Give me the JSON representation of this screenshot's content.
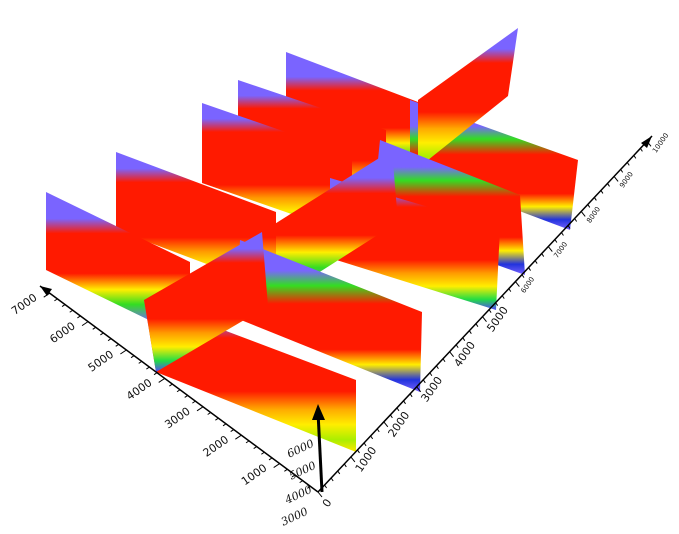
{
  "chart_data": {
    "type": "3d-fence-diagram",
    "title": "",
    "axes": {
      "x": {
        "label": "",
        "range": [
          0,
          10000
        ],
        "ticks": [
          "0",
          "1000",
          "2000",
          "3000",
          "4000",
          "5000",
          "6000",
          "7000",
          "8000",
          "9000",
          "10000"
        ]
      },
      "y": {
        "label": "",
        "range": [
          0,
          7000
        ],
        "ticks": [
          "0",
          "1000",
          "2000",
          "3000",
          "4000",
          "5000",
          "6000",
          "7000"
        ]
      },
      "z": {
        "label": "",
        "range": [
          3000,
          6000
        ],
        "ticks": [
          "3000",
          "4000",
          "5000",
          "6000"
        ]
      }
    },
    "colormap": [
      "#7a64ff",
      "#2233dd",
      "#11dd55",
      "#ffee00",
      "#ff1a00"
    ],
    "sections": [
      {
        "orientation": "along-y",
        "x": 1200,
        "dominant": [
          "red",
          "purple",
          "green"
        ]
      },
      {
        "orientation": "along-y",
        "x": 3000,
        "dominant": [
          "red",
          "purple",
          "green",
          "yellow"
        ]
      },
      {
        "orientation": "along-y",
        "x": 5300,
        "dominant": [
          "red",
          "purple",
          "green"
        ]
      },
      {
        "orientation": "along-y",
        "x": 6800,
        "dominant": [
          "red",
          "purple",
          "green"
        ]
      },
      {
        "orientation": "along-y",
        "x": 8200,
        "dominant": [
          "red",
          "purple",
          "green"
        ]
      },
      {
        "orientation": "along-x",
        "y": 3800,
        "dominant": [
          "red",
          "purple",
          "green",
          "blue"
        ]
      },
      {
        "orientation": "along-x",
        "y": 2000,
        "dominant": [
          "red",
          "purple",
          "green",
          "yellow"
        ]
      }
    ],
    "grid": false,
    "legend": "none"
  }
}
